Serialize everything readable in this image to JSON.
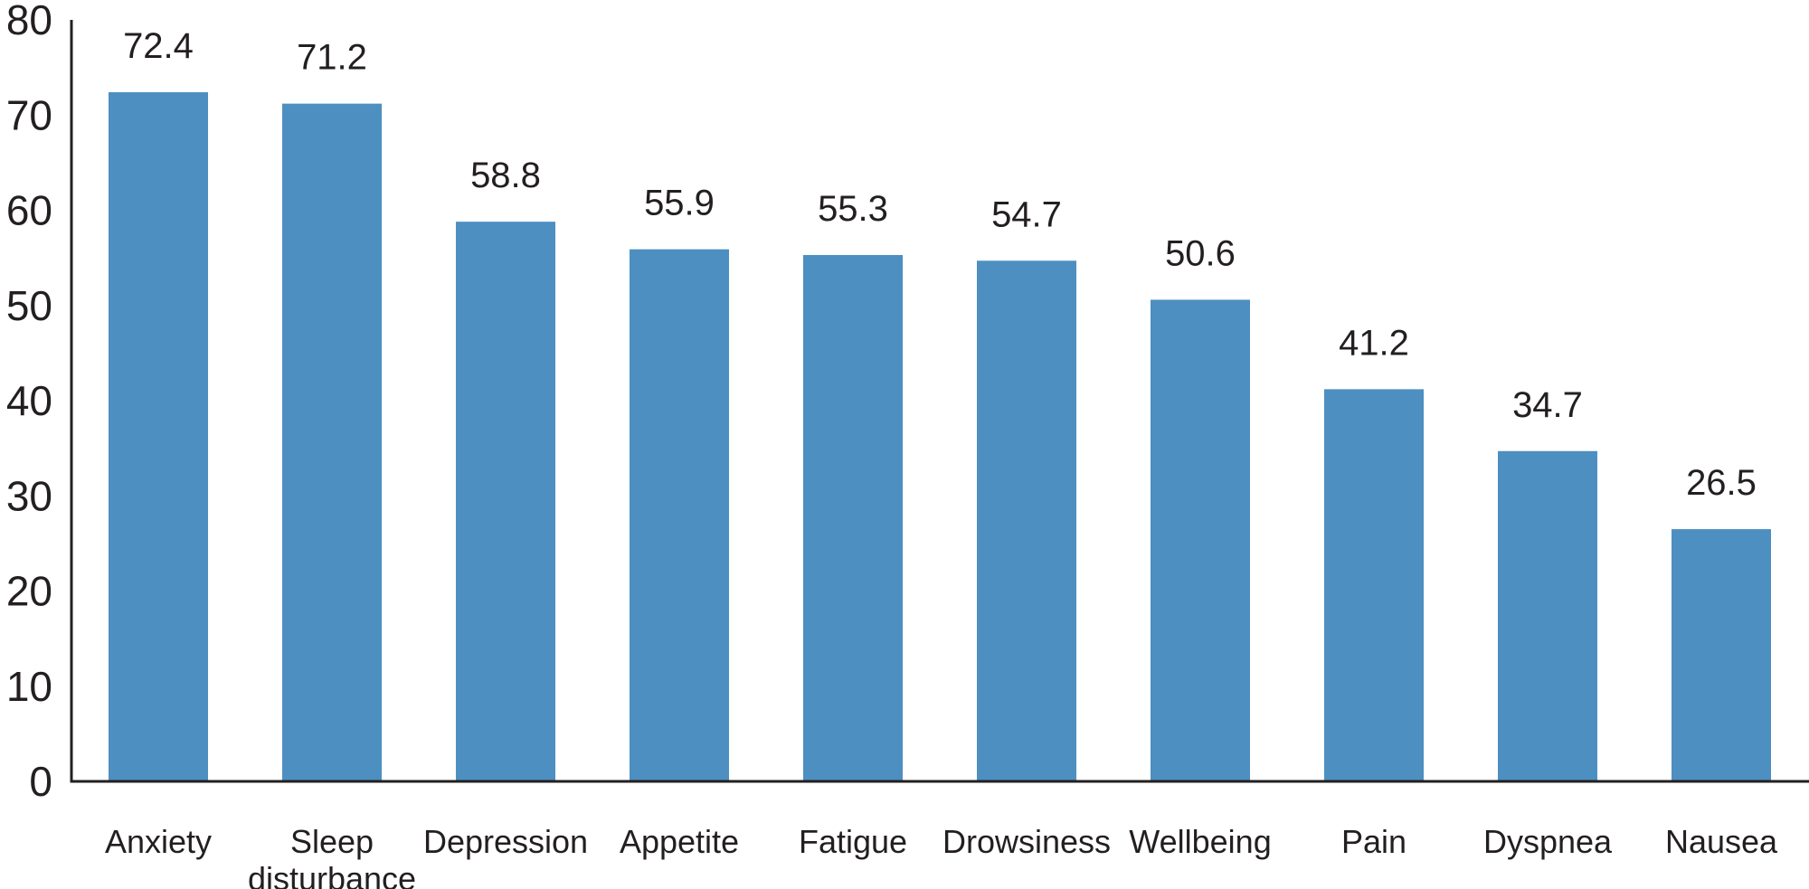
{
  "chart_data": {
    "type": "bar",
    "title": "",
    "xlabel": "",
    "ylabel": "",
    "ylim": [
      0,
      80
    ],
    "yticks": [
      0,
      10,
      20,
      30,
      40,
      50,
      60,
      70,
      80
    ],
    "grid": false,
    "categories": [
      [
        "Anxiety"
      ],
      [
        "Sleep",
        "disturbance"
      ],
      [
        "Depression"
      ],
      [
        "Appetite"
      ],
      [
        "Fatigue"
      ],
      [
        "Drowsiness"
      ],
      [
        "Wellbeing"
      ],
      [
        "Pain"
      ],
      [
        "Dyspnea"
      ],
      [
        "Nausea"
      ]
    ],
    "values": [
      72.4,
      71.2,
      58.8,
      55.9,
      55.3,
      54.7,
      50.6,
      41.2,
      34.7,
      26.5
    ],
    "value_labels": [
      "72.4",
      "71.2",
      "58.8",
      "55.9",
      "55.3",
      "54.7",
      "50.6",
      "41.2",
      "34.7",
      "26.5"
    ],
    "colors": {
      "bar": "#4d8fc1",
      "axis": "#231f20",
      "text": "#231f20"
    }
  }
}
